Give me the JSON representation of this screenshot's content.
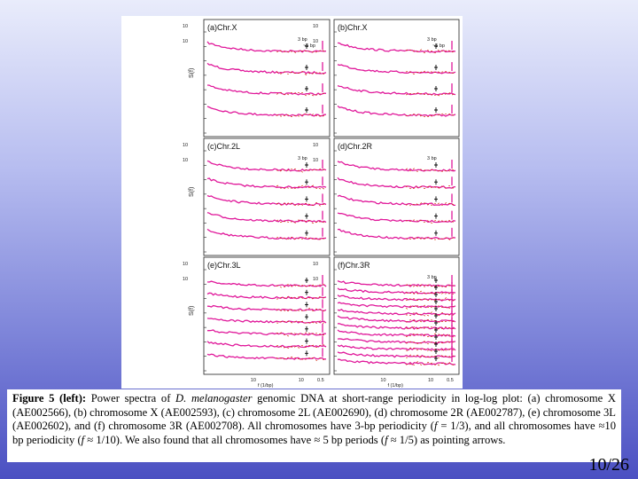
{
  "figure": {
    "panels": [
      {
        "label": "(a)Chr.X",
        "annotations": [
          "3 bp",
          "~5 bp"
        ],
        "n_curves": 4,
        "ylabel": "S(f)"
      },
      {
        "label": "(b)Chr.X",
        "annotations": [
          "3 bp",
          "~5 bp"
        ],
        "n_curves": 4,
        "ylabel": ""
      },
      {
        "label": "(c)Chr.2L",
        "annotations": [
          "3 bp"
        ],
        "n_curves": 5,
        "ylabel": "S(f)"
      },
      {
        "label": "(d)Chr.2R",
        "annotations": [
          "3 bp"
        ],
        "n_curves": 5,
        "ylabel": ""
      },
      {
        "label": "(e)Chr.3L",
        "annotations": [],
        "n_curves": 7,
        "ylabel": "S(f)"
      },
      {
        "label": "(f)Chr.3R",
        "annotations": [
          "3 bp"
        ],
        "n_curves": 12,
        "ylabel": ""
      }
    ],
    "y_top_tick": "10",
    "y_second_tick": "10",
    "x_ticks": [
      "10",
      "10",
      "0.5"
    ],
    "x_axis_label": "f (1/bp)",
    "curve_color": "#e0189a",
    "noise_color": "#d43010"
  },
  "caption": {
    "head": "Figure 5 (left):",
    "t1": " Power spectra of ",
    "species": "D. melanogaster",
    "t2": " genomic DNA at short-range periodicity in log-log plot: (a) chromosome X (AE002566), (b) chromosome X (AE002593), (c) chromosome 2L (AE002690), (d) chromosome 2R (AE002787), (e) chromosome 3L (AE002602), and (f) chromosome 3R (AE002708). All chromosomes have 3-bp periodicity (",
    "f1": "f",
    "t3": " = 1/3), and all chromosomes have ≈10 bp periodicity (",
    "f2": "f",
    "t4": " ≈ 1/10). We also found that all chromosomes have ≈ 5 bp periods (",
    "f3": "f",
    "t5": " ≈ 1/5) as pointing arrows."
  },
  "page_number": "10/26"
}
